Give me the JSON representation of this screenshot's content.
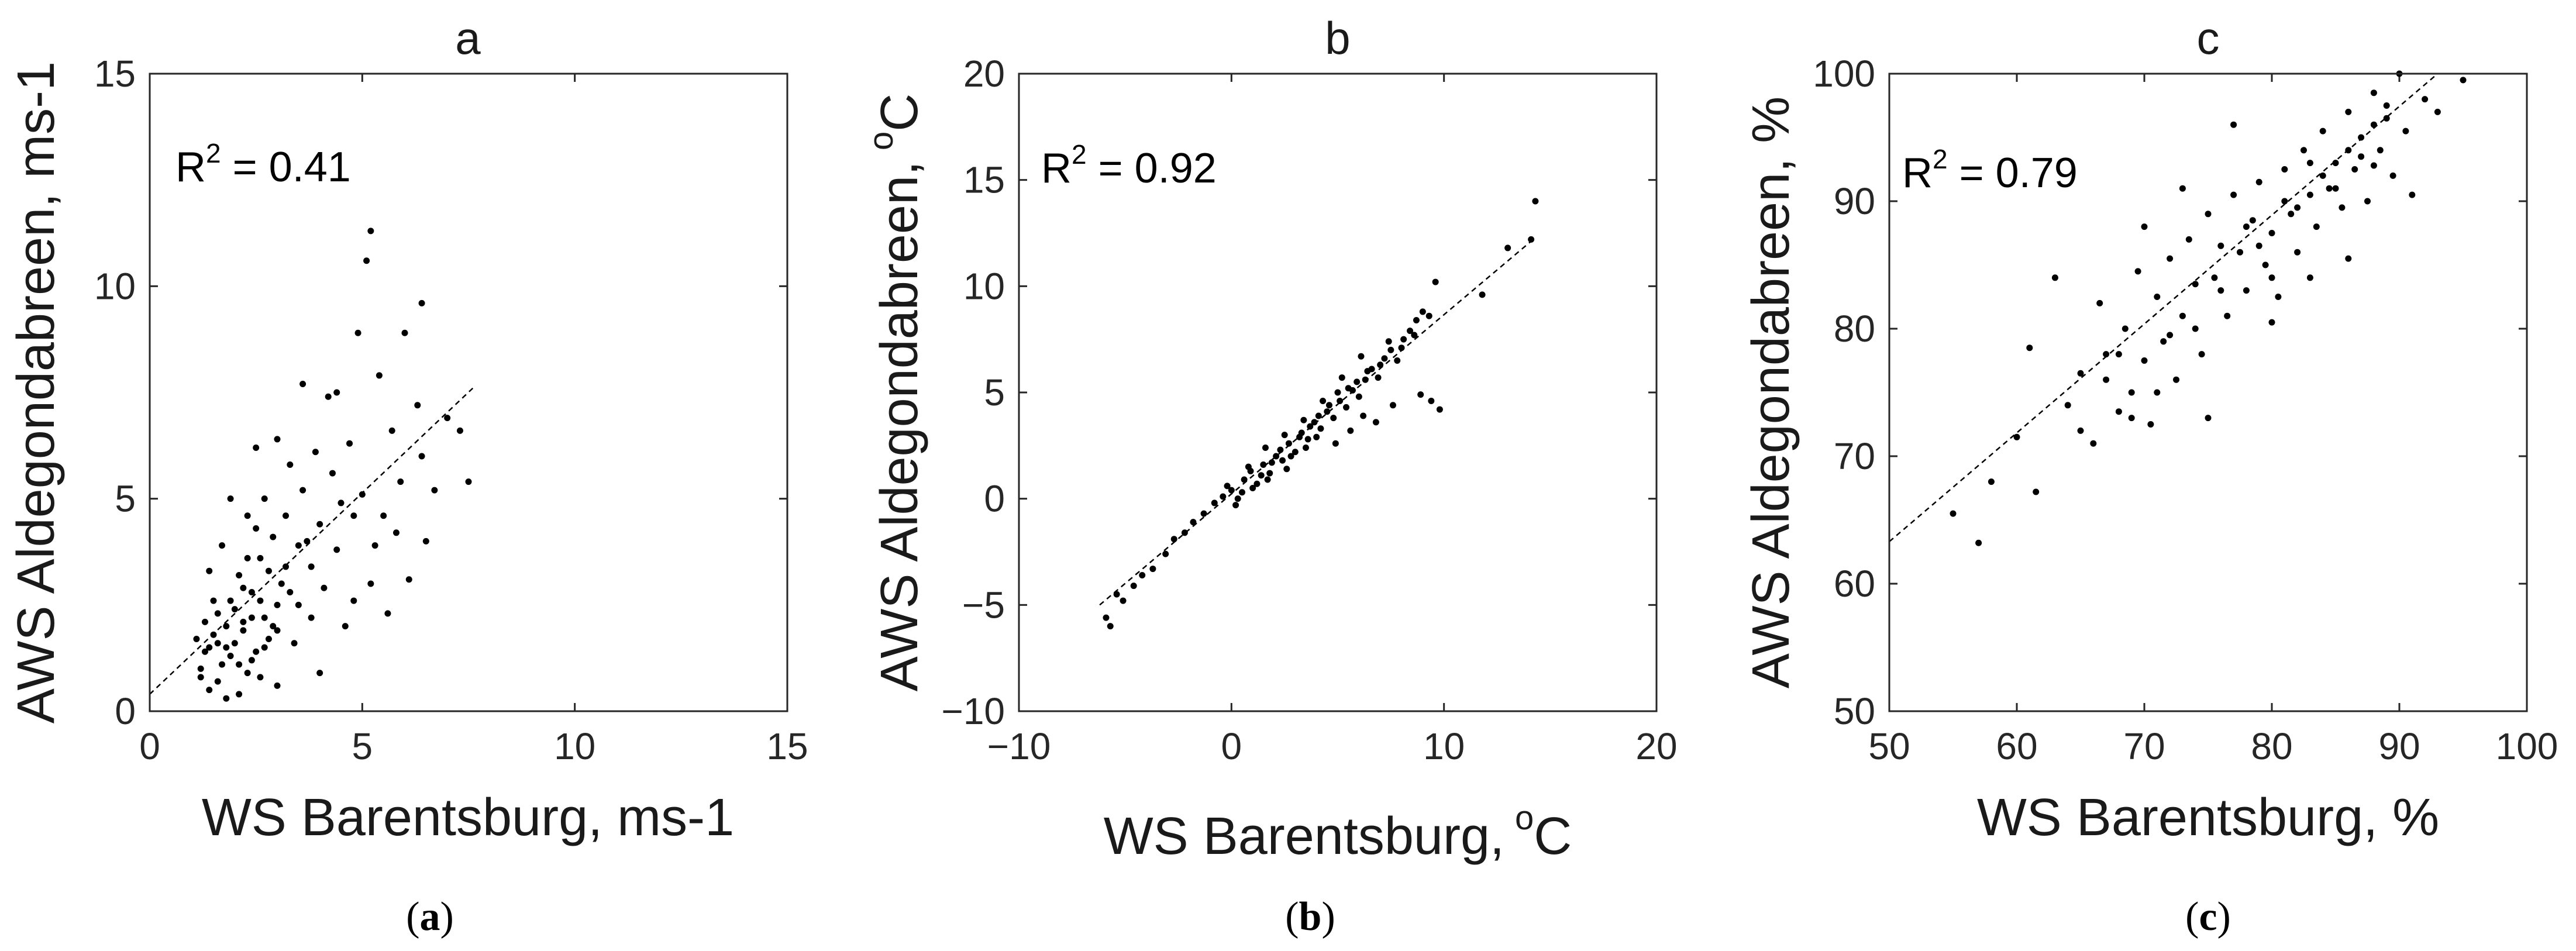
{
  "chart_data": [
    {
      "type": "scatter",
      "title": "a",
      "caption": "a",
      "xlabel": "WS Barentsburg, ms-1",
      "ylabel": "AWS Aldegondabreen, ms-1",
      "xlim": [
        0,
        15
      ],
      "ylim": [
        0,
        15
      ],
      "xticks": [
        0,
        5,
        10,
        15
      ],
      "yticks": [
        0,
        5,
        10,
        15
      ],
      "r2_label": "= 0.41",
      "fit_line": [
        [
          0,
          0.4
        ],
        [
          7.6,
          7.6
        ]
      ],
      "points": [
        [
          1.2,
          0.8
        ],
        [
          1.3,
          1.4
        ],
        [
          1.4,
          0.5
        ],
        [
          1.5,
          1.8
        ],
        [
          1.6,
          2.3
        ],
        [
          1.7,
          1.1
        ],
        [
          1.8,
          0.3
        ],
        [
          1.9,
          2.6
        ],
        [
          2.0,
          1.6
        ],
        [
          2.1,
          3.2
        ],
        [
          2.2,
          1.9
        ],
        [
          2.3,
          0.9
        ],
        [
          2.4,
          2.8
        ],
        [
          2.5,
          1.4
        ],
        [
          2.6,
          3.6
        ],
        [
          2.7,
          2.2
        ],
        [
          2.8,
          1.7
        ],
        [
          2.9,
          4.1
        ],
        [
          3.0,
          2.5
        ],
        [
          3.1,
          3.0
        ],
        [
          1.1,
          1.7
        ],
        [
          1.3,
          2.1
        ],
        [
          1.6,
          0.7
        ],
        [
          1.8,
          1.5
        ],
        [
          2.0,
          2.4
        ],
        [
          2.2,
          2.9
        ],
        [
          2.4,
          1.2
        ],
        [
          2.6,
          2.6
        ],
        [
          2.8,
          3.3
        ],
        [
          3.0,
          1.9
        ],
        [
          3.2,
          4.6
        ],
        [
          3.3,
          2.8
        ],
        [
          3.5,
          3.9
        ],
        [
          3.6,
          5.2
        ],
        [
          3.8,
          3.4
        ],
        [
          3.9,
          6.1
        ],
        [
          4.0,
          4.4
        ],
        [
          4.1,
          2.9
        ],
        [
          4.2,
          7.4
        ],
        [
          4.3,
          5.6
        ],
        [
          4.4,
          3.8
        ],
        [
          4.5,
          4.9
        ],
        [
          4.7,
          6.3
        ],
        [
          4.8,
          2.6
        ],
        [
          4.9,
          8.9
        ],
        [
          5.0,
          5.1
        ],
        [
          5.1,
          10.6
        ],
        [
          5.2,
          11.3
        ],
        [
          5.3,
          3.9
        ],
        [
          5.4,
          7.9
        ],
        [
          5.5,
          4.6
        ],
        [
          5.6,
          2.3
        ],
        [
          5.7,
          6.6
        ],
        [
          5.9,
          5.4
        ],
        [
          6.0,
          8.9
        ],
        [
          6.1,
          3.1
        ],
        [
          6.3,
          7.2
        ],
        [
          6.4,
          9.6
        ],
        [
          6.5,
          4.0
        ],
        [
          6.7,
          5.2
        ],
        [
          7.0,
          6.9
        ],
        [
          7.3,
          6.6
        ],
        [
          7.5,
          5.4
        ],
        [
          2.5,
          6.2
        ],
        [
          2.7,
          5.0
        ],
        [
          3.0,
          6.4
        ],
        [
          3.3,
          5.8
        ],
        [
          3.6,
          7.7
        ],
        [
          1.9,
          5.0
        ],
        [
          2.3,
          4.6
        ],
        [
          1.4,
          3.3
        ],
        [
          1.5,
          2.6
        ],
        [
          1.7,
          3.9
        ],
        [
          2.1,
          0.4
        ],
        [
          2.3,
          3.6
        ],
        [
          2.5,
          4.3
        ],
        [
          1.2,
          1.0
        ],
        [
          1.4,
          1.5
        ],
        [
          1.9,
          1.3
        ],
        [
          2.1,
          1.1
        ],
        [
          2.6,
          0.8
        ],
        [
          3.0,
          0.6
        ],
        [
          3.4,
          1.6
        ],
        [
          3.8,
          2.2
        ],
        [
          4.0,
          0.9
        ],
        [
          4.6,
          2.0
        ],
        [
          5.2,
          3.0
        ],
        [
          5.8,
          4.2
        ],
        [
          6.4,
          6.0
        ],
        [
          4.4,
          7.5
        ],
        [
          4.8,
          4.6
        ],
        [
          3.2,
          3.4
        ],
        [
          2.9,
          2.0
        ],
        [
          2.2,
          2.1
        ],
        [
          1.8,
          2.0
        ],
        [
          1.6,
          1.6
        ],
        [
          2.4,
          2.2
        ],
        [
          2.7,
          1.5
        ],
        [
          3.5,
          2.5
        ],
        [
          3.7,
          4.0
        ]
      ]
    },
    {
      "type": "scatter",
      "title": "b",
      "caption": "b",
      "xlabel_main": "WS Barentsburg,",
      "xlabel_unit": "C",
      "ylabel_main": "AWS Aldegondabreen,",
      "ylabel_unit": "C",
      "degree_mark": "o",
      "xlim": [
        -10,
        20
      ],
      "ylim": [
        -10,
        20
      ],
      "xticks": [
        -10,
        0,
        10,
        20
      ],
      "yticks": [
        -10,
        -5,
        0,
        5,
        10,
        15,
        20
      ],
      "xtick_labels": [
        "−10",
        "0",
        "10",
        "20"
      ],
      "ytick_labels": [
        "−10",
        "−5",
        "0",
        "5",
        "10",
        "15",
        "20"
      ],
      "r2_label": "= 0.92",
      "fit_line": [
        [
          -6.2,
          -5.0
        ],
        [
          14.2,
          12.2
        ]
      ],
      "points": [
        [
          -5.9,
          -5.6
        ],
        [
          -5.7,
          -6.0
        ],
        [
          -5.4,
          -4.5
        ],
        [
          -5.1,
          -4.8
        ],
        [
          -4.6,
          -4.1
        ],
        [
          -4.2,
          -3.6
        ],
        [
          -3.7,
          -3.3
        ],
        [
          -3.1,
          -2.6
        ],
        [
          -2.7,
          -1.9
        ],
        [
          -2.2,
          -1.6
        ],
        [
          -1.8,
          -1.1
        ],
        [
          -1.3,
          -0.7
        ],
        [
          -0.8,
          -0.2
        ],
        [
          -0.4,
          0.1
        ],
        [
          0.0,
          0.4
        ],
        [
          0.3,
          0.0
        ],
        [
          0.6,
          0.9
        ],
        [
          0.9,
          1.3
        ],
        [
          1.2,
          0.7
        ],
        [
          1.5,
          1.6
        ],
        [
          1.8,
          1.2
        ],
        [
          2.1,
          2.0
        ],
        [
          2.4,
          1.8
        ],
        [
          2.7,
          2.6
        ],
        [
          3.0,
          2.2
        ],
        [
          3.3,
          3.1
        ],
        [
          3.6,
          2.8
        ],
        [
          3.9,
          3.6
        ],
        [
          4.2,
          3.3
        ],
        [
          4.5,
          4.1
        ],
        [
          4.8,
          3.8
        ],
        [
          5.1,
          4.6
        ],
        [
          5.4,
          4.3
        ],
        [
          5.7,
          5.1
        ],
        [
          6.0,
          4.8
        ],
        [
          6.3,
          5.6
        ],
        [
          6.6,
          6.1
        ],
        [
          6.9,
          5.7
        ],
        [
          7.2,
          6.6
        ],
        [
          7.5,
          7.0
        ],
        [
          7.8,
          6.5
        ],
        [
          8.1,
          7.5
        ],
        [
          8.4,
          7.9
        ],
        [
          8.7,
          8.4
        ],
        [
          9.0,
          8.8
        ],
        [
          9.3,
          8.6
        ],
        [
          9.6,
          10.2
        ],
        [
          9.8,
          4.2
        ],
        [
          9.4,
          4.6
        ],
        [
          8.9,
          4.9
        ],
        [
          7.6,
          4.4
        ],
        [
          6.8,
          3.6
        ],
        [
          6.2,
          3.9
        ],
        [
          5.6,
          3.2
        ],
        [
          4.9,
          2.6
        ],
        [
          11.8,
          9.6
        ],
        [
          13.0,
          11.8
        ],
        [
          14.3,
          14.0
        ],
        [
          14.1,
          12.2
        ],
        [
          0.2,
          -0.3
        ],
        [
          0.5,
          0.3
        ],
        [
          1.0,
          0.5
        ],
        [
          1.4,
          1.1
        ],
        [
          1.9,
          1.7
        ],
        [
          2.3,
          2.3
        ],
        [
          2.8,
          2.0
        ],
        [
          3.2,
          2.9
        ],
        [
          3.7,
          3.4
        ],
        [
          4.1,
          3.9
        ],
        [
          4.6,
          4.4
        ],
        [
          5.0,
          5.0
        ],
        [
          5.5,
          5.2
        ],
        [
          5.9,
          5.5
        ],
        [
          6.4,
          6.0
        ],
        [
          7.0,
          6.3
        ],
        [
          7.4,
          7.4
        ],
        [
          8.0,
          7.1
        ],
        [
          8.6,
          7.7
        ],
        [
          -0.2,
          0.6
        ],
        [
          0.8,
          1.5
        ],
        [
          1.6,
          2.4
        ],
        [
          2.5,
          3.0
        ],
        [
          3.4,
          3.7
        ],
        [
          4.3,
          4.6
        ],
        [
          5.2,
          5.7
        ],
        [
          6.1,
          6.7
        ],
        [
          3.5,
          2.4
        ],
        [
          2.6,
          1.4
        ],
        [
          1.7,
          0.9
        ],
        [
          4.0,
          2.9
        ]
      ]
    },
    {
      "type": "scatter",
      "title": "c",
      "caption": "c",
      "xlabel": "WS Barentsburg, %",
      "ylabel": "AWS Aldegondabreen,  %",
      "xlim": [
        50,
        100
      ],
      "ylim": [
        50,
        100
      ],
      "xticks": [
        50,
        60,
        70,
        80,
        90,
        100
      ],
      "yticks": [
        50,
        60,
        70,
        80,
        90,
        100
      ],
      "r2_label": "= 0.79",
      "fit_line": [
        [
          50,
          63.3
        ],
        [
          93,
          100
        ]
      ],
      "points": [
        [
          55,
          65.5
        ],
        [
          57,
          63.2
        ],
        [
          58,
          68
        ],
        [
          60,
          71.5
        ],
        [
          61,
          78.5
        ],
        [
          61.5,
          67.2
        ],
        [
          63,
          84
        ],
        [
          64,
          74
        ],
        [
          65,
          76.5
        ],
        [
          66,
          71
        ],
        [
          66.5,
          82
        ],
        [
          67,
          78
        ],
        [
          68,
          73.5
        ],
        [
          68.5,
          80
        ],
        [
          69,
          75
        ],
        [
          69.5,
          84.5
        ],
        [
          70,
          77.5
        ],
        [
          70.5,
          72.5
        ],
        [
          71,
          82.5
        ],
        [
          71.5,
          79
        ],
        [
          72,
          85.5
        ],
        [
          72.5,
          76
        ],
        [
          73,
          81
        ],
        [
          73.5,
          87
        ],
        [
          74,
          83.5
        ],
        [
          74.5,
          78
        ],
        [
          75,
          89
        ],
        [
          75.5,
          84
        ],
        [
          76,
          86.5
        ],
        [
          76.5,
          81
        ],
        [
          77,
          90.5
        ],
        [
          77.5,
          86
        ],
        [
          78,
          83
        ],
        [
          78.5,
          88.5
        ],
        [
          79,
          91.5
        ],
        [
          79.5,
          85
        ],
        [
          80,
          87.5
        ],
        [
          80.5,
          82.5
        ],
        [
          81,
          92.5
        ],
        [
          81.5,
          89
        ],
        [
          82,
          86
        ],
        [
          82.5,
          94
        ],
        [
          83,
          90.5
        ],
        [
          83.5,
          88
        ],
        [
          84,
          95.5
        ],
        [
          84.5,
          91
        ],
        [
          85,
          93
        ],
        [
          85.5,
          89.5
        ],
        [
          86,
          97
        ],
        [
          86.5,
          92.5
        ],
        [
          87,
          95
        ],
        [
          87.5,
          90
        ],
        [
          88,
          98.5
        ],
        [
          88.5,
          94
        ],
        [
          89,
          96.5
        ],
        [
          89.5,
          92
        ],
        [
          90,
          100
        ],
        [
          90.5,
          95.5
        ],
        [
          91,
          90.5
        ],
        [
          92,
          98
        ],
        [
          93,
          97
        ],
        [
          95,
          99.5
        ],
        [
          75,
          73
        ],
        [
          73,
          91
        ],
        [
          77,
          96
        ],
        [
          80,
          80.5
        ],
        [
          83,
          84
        ],
        [
          86,
          85.5
        ],
        [
          88,
          92.8
        ],
        [
          70,
          88
        ],
        [
          68,
          78
        ],
        [
          72,
          79.5
        ],
        [
          76,
          83
        ],
        [
          79,
          86.5
        ],
        [
          82,
          89.5
        ],
        [
          84,
          92
        ],
        [
          86,
          94
        ],
        [
          88,
          96
        ],
        [
          78,
          88
        ],
        [
          81,
          90
        ],
        [
          85,
          91
        ],
        [
          87,
          93.5
        ],
        [
          83,
          93
        ],
        [
          80,
          84
        ],
        [
          74,
          80
        ],
        [
          71,
          75
        ],
        [
          69,
          73
        ],
        [
          67,
          76
        ],
        [
          65,
          72
        ],
        [
          89,
          97.5
        ]
      ]
    }
  ]
}
